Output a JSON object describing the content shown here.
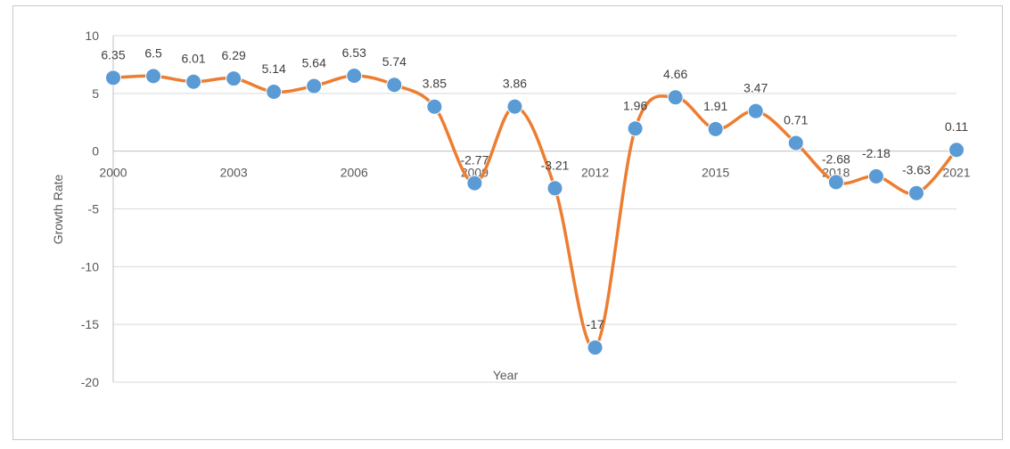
{
  "chart_data": {
    "type": "line",
    "title": "",
    "xlabel": "Year",
    "ylabel": "Growth Rate",
    "ylim": [
      -20,
      10
    ],
    "yticks": [
      10,
      5,
      0,
      -5,
      -10,
      -15,
      -20
    ],
    "xtick_labels": [
      "2000",
      "2003",
      "2006",
      "2009",
      "2012",
      "2015",
      "2018",
      "2021"
    ],
    "grid": true,
    "legend": "none",
    "line_color": "#ED7D31",
    "marker_color": "#5B9BD5",
    "series": [
      {
        "x": [
          2000,
          2001,
          2002,
          2003,
          2004,
          2005,
          2006,
          2007,
          2008,
          2009,
          2010,
          2011,
          2012,
          2013,
          2014,
          2015,
          2016,
          2017,
          2018,
          2019,
          2020,
          2021
        ],
        "values": [
          6.35,
          6.5,
          6.01,
          6.29,
          5.14,
          5.64,
          6.53,
          5.74,
          3.85,
          -2.77,
          3.86,
          -3.21,
          -17,
          1.96,
          4.66,
          1.91,
          3.47,
          0.71,
          -2.68,
          -2.18,
          -3.63,
          0.11
        ],
        "labels": [
          "6.35",
          "6.5",
          "6.01",
          "6.29",
          "5.14",
          "5.64",
          "6.53",
          "5.74",
          "3.85",
          "-2.77",
          "3.86",
          "-3.21",
          "-17",
          "1.96",
          "4.66",
          "1.91",
          "3.47",
          "0.71",
          "-2.68",
          "-2.18",
          "-3.63",
          "0.11"
        ]
      }
    ]
  }
}
